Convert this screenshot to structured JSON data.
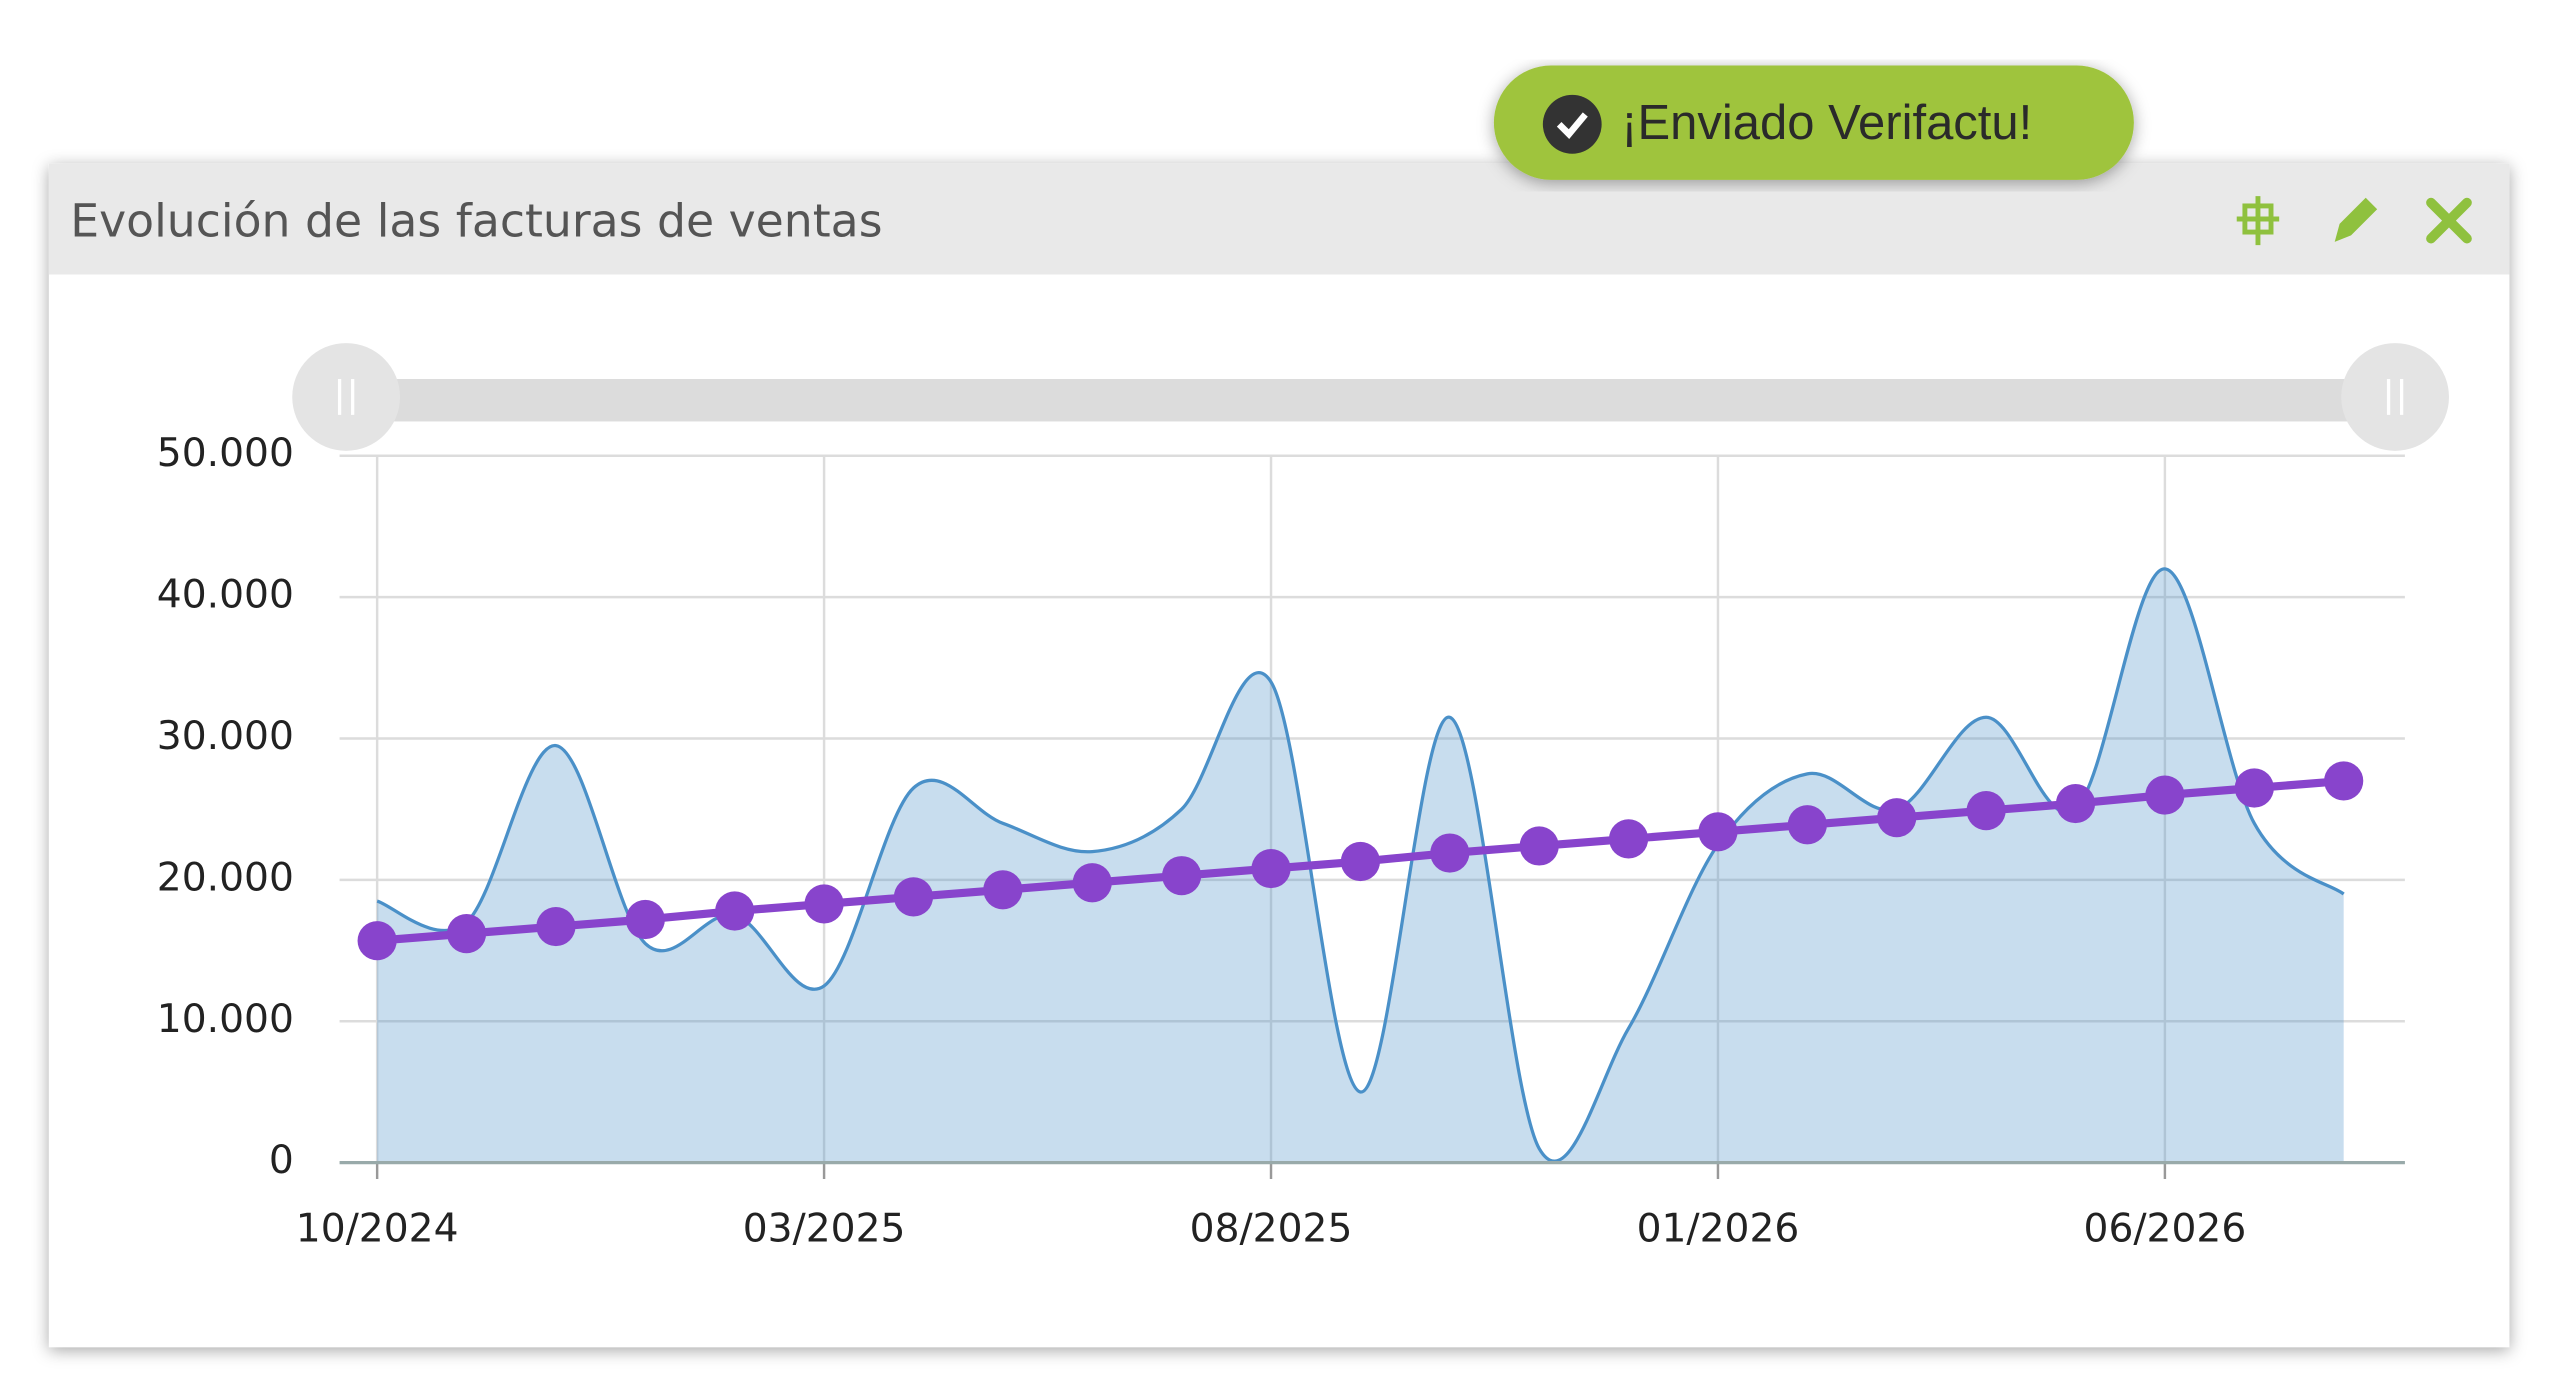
{
  "toast": {
    "text": "¡Enviado Verifactu!"
  },
  "widget": {
    "title": "Evolución de las facturas de ventas"
  },
  "chart_data": {
    "type": "area",
    "categories": [
      "10/2024",
      null,
      null,
      null,
      null,
      "03/2025",
      null,
      null,
      null,
      null,
      "08/2025",
      null,
      null,
      null,
      null,
      "01/2026",
      null,
      null,
      null,
      null,
      "06/2026",
      null,
      null
    ],
    "series": [
      {
        "type": "area",
        "color": "#4a90c8",
        "values": [
          18500,
          17000,
          29500,
          15500,
          17500,
          12500,
          26500,
          24000,
          22000,
          25000,
          34000,
          5000,
          31500,
          1000,
          9500,
          22500,
          27500,
          25000,
          31500,
          25000,
          42000,
          24000,
          19000
        ]
      },
      {
        "type": "line",
        "color": "#8844cc",
        "values": [
          15700,
          16200,
          16700,
          17200,
          17800,
          18300,
          18800,
          19300,
          19800,
          20300,
          20800,
          21300,
          21900,
          22400,
          22900,
          23400,
          23900,
          24400,
          24900,
          25400,
          26000,
          26500,
          27000
        ]
      }
    ],
    "ylim": [
      0,
      50000
    ],
    "yticks": [
      0,
      {
        "value": 10000,
        "label": "10.000"
      },
      {
        "value": 20000,
        "label": "20.000"
      },
      {
        "value": 30000,
        "label": "30.000"
      },
      {
        "value": 40000,
        "label": "40.000"
      },
      {
        "value": 50000,
        "label": "50.000"
      }
    ],
    "grid": true
  }
}
